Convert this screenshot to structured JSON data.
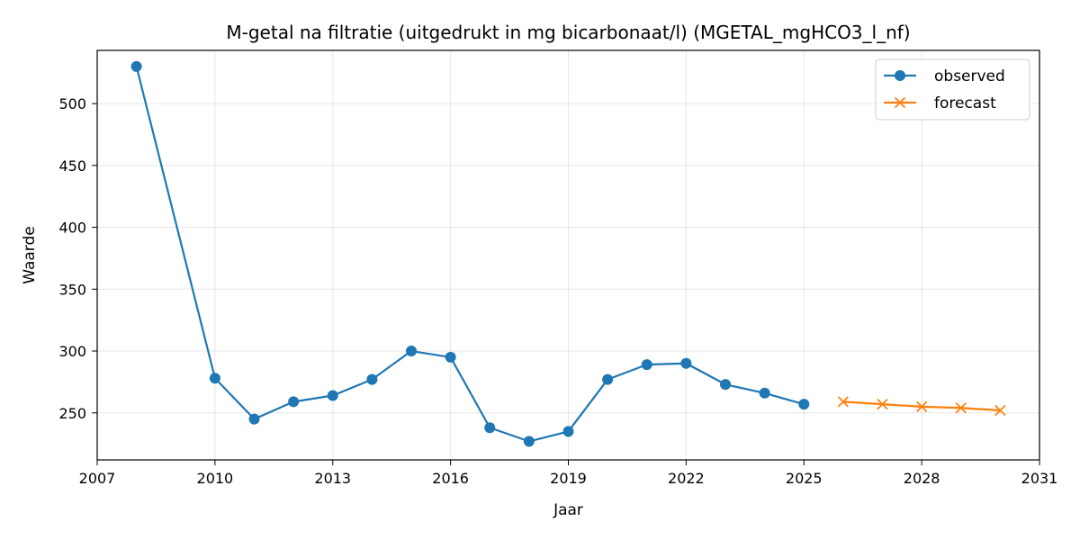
{
  "chart_data": {
    "type": "line",
    "title": "M-getal na filtratie (uitgedrukt in mg bicarbonaat/l) (MGETAL_mgHCO3_l_nf)",
    "xlabel": "Jaar",
    "ylabel": "Waarde",
    "xlim": [
      2007,
      2031
    ],
    "ylim": [
      212,
      543
    ],
    "xticks": [
      2007,
      2010,
      2013,
      2016,
      2019,
      2022,
      2025,
      2028,
      2031
    ],
    "yticks": [
      250,
      300,
      350,
      400,
      450,
      500
    ],
    "grid": true,
    "legend_position": "top-right",
    "series": [
      {
        "name": "observed",
        "color": "#1f77b4",
        "marker": "circle",
        "x": [
          2008,
          2010,
          2011,
          2012,
          2013,
          2014,
          2015,
          2016,
          2017,
          2018,
          2019,
          2020,
          2021,
          2022,
          2023,
          2024,
          2025
        ],
        "values": [
          530,
          278,
          245,
          259,
          264,
          277,
          300,
          295,
          238,
          227,
          235,
          277,
          289,
          290,
          273,
          266,
          257
        ]
      },
      {
        "name": "forecast",
        "color": "#ff7f0e",
        "marker": "x",
        "x": [
          2026,
          2027,
          2028,
          2029,
          2030
        ],
        "values": [
          259,
          257,
          255,
          254,
          252
        ]
      }
    ]
  }
}
